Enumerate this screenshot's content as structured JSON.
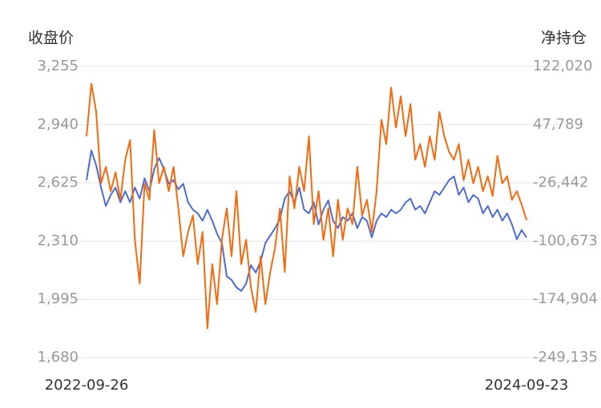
{
  "chart_data": {
    "type": "line",
    "y_label": "收盘价",
    "y2_label": "净持仓",
    "categories": [
      "2022-09-26",
      null,
      null,
      null,
      null,
      null,
      null,
      null,
      null,
      null,
      null,
      null,
      null,
      null,
      null,
      null,
      null,
      null,
      null,
      null,
      null,
      null,
      null,
      null,
      null,
      null,
      null,
      null,
      null,
      null,
      null,
      null,
      null,
      null,
      null,
      null,
      null,
      null,
      null,
      null,
      null,
      null,
      null,
      null,
      null,
      null,
      null,
      null,
      null,
      null,
      null,
      null,
      null,
      null,
      null,
      null,
      null,
      null,
      null,
      null,
      null,
      null,
      null,
      null,
      null,
      null,
      null,
      null,
      null,
      null,
      null,
      null,
      null,
      null,
      null,
      null,
      null,
      null,
      null,
      null,
      null,
      null,
      null,
      null,
      null,
      null,
      null,
      null,
      null,
      null,
      null,
      "2024-09-23"
    ],
    "series": [
      {
        "color": "#4e6bd0",
        "axis": "y",
        "values": [
          2640,
          2800,
          2720,
          2600,
          2500,
          2560,
          2600,
          2520,
          2580,
          2520,
          2600,
          2540,
          2650,
          2580,
          2700,
          2760,
          2700,
          2620,
          2640,
          2590,
          2620,
          2520,
          2480,
          2460,
          2420,
          2480,
          2420,
          2350,
          2300,
          2120,
          2100,
          2060,
          2040,
          2080,
          2180,
          2140,
          2200,
          2300,
          2340,
          2380,
          2430,
          2540,
          2580,
          2520,
          2600,
          2480,
          2460,
          2520,
          2400,
          2480,
          2530,
          2420,
          2380,
          2440,
          2420,
          2460,
          2380,
          2440,
          2420,
          2330,
          2420,
          2460,
          2440,
          2480,
          2460,
          2480,
          2520,
          2540,
          2480,
          2500,
          2460,
          2520,
          2580,
          2560,
          2600,
          2640,
          2660,
          2560,
          2600,
          2520,
          2560,
          2540,
          2460,
          2500,
          2440,
          2480,
          2420,
          2460,
          2400,
          2320,
          2370,
          2330
        ]
      },
      {
        "color": "#f5690f",
        "axis": "y2",
        "values": [
          33000,
          100000,
          64000,
          -27000,
          -6000,
          -37000,
          -13000,
          -48000,
          3000,
          28000,
          -99000,
          -155000,
          -27000,
          -48000,
          41000,
          -27000,
          -6000,
          -37000,
          -6000,
          -59000,
          -120000,
          -89000,
          -68000,
          -130000,
          -89000,
          -212000,
          -130000,
          -181000,
          -99000,
          -59000,
          -120000,
          -37000,
          -130000,
          -99000,
          -160000,
          -191000,
          -120000,
          -181000,
          -140000,
          -109000,
          -59000,
          -140000,
          -18000,
          -59000,
          -6000,
          -37000,
          33000,
          -79000,
          -37000,
          -99000,
          -59000,
          -120000,
          -48000,
          -99000,
          -59000,
          -79000,
          -6000,
          -68000,
          -48000,
          -89000,
          -37000,
          54000,
          23000,
          95000,
          44000,
          84000,
          33000,
          74000,
          3000,
          23000,
          -6000,
          33000,
          3000,
          64000,
          33000,
          13000,
          3000,
          23000,
          -23000,
          3000,
          -27000,
          -6000,
          -37000,
          -18000,
          -43000,
          8000,
          -27000,
          -18000,
          -48000,
          -37000,
          -54000,
          -74000
        ]
      }
    ],
    "ylim": [
      1680,
      3255
    ],
    "yticks": [
      {
        "value": 1680,
        "label": "1,680"
      },
      {
        "value": 1995,
        "label": "1,995"
      },
      {
        "value": 2310,
        "label": "2,310"
      },
      {
        "value": 2625,
        "label": "2,625"
      },
      {
        "value": 2940,
        "label": "2,940"
      },
      {
        "value": 3255,
        "label": "3,255"
      }
    ],
    "y2lim": [
      -249135,
      122020
    ],
    "y2ticks": [
      {
        "value": -249135,
        "label": "-249,135"
      },
      {
        "value": -174904,
        "label": "-174,904"
      },
      {
        "value": -100673,
        "label": "-100,673"
      },
      {
        "value": -26442,
        "label": "-26,442"
      },
      {
        "value": 47789,
        "label": "47,789"
      },
      {
        "value": 122020,
        "label": "122,020"
      }
    ],
    "grid": true
  }
}
